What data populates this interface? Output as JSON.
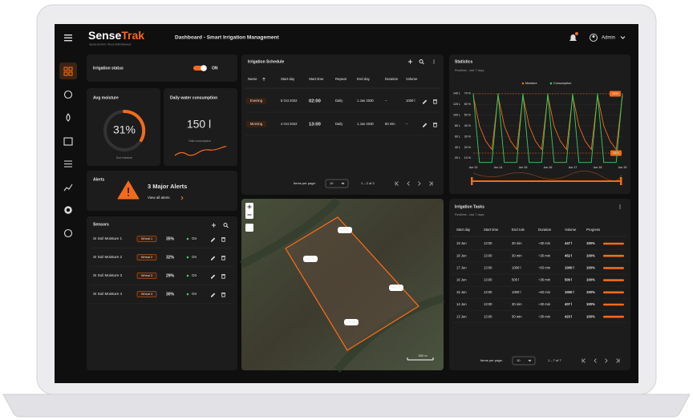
{
  "header": {
    "brand_prefix": "Sense",
    "brand_suffix": "Trak",
    "tagline": "SENSE GROWTH. TRACK PERFORMANCE.",
    "title": "Dashboard - Smart Irrigation Management",
    "user": "Admin"
  },
  "irrigation_status": {
    "label": "Irrigation status",
    "state": "ON"
  },
  "avg_moisture": {
    "title": "Avg moisture",
    "value": "31%",
    "caption": "Soil moisture"
  },
  "daily_water": {
    "title": "Daily water consumption",
    "value": "150 l",
    "caption": "Total consumption"
  },
  "alerts": {
    "title": "Alerts",
    "headline": "3 Major Alerts",
    "link": "View all alerts"
  },
  "sensors": {
    "title": "Sensors",
    "rows": [
      [
        "SI Soil Moisture 1",
        "Wheat 1",
        "35%",
        "On"
      ],
      [
        "SI Soil Moisture 2",
        "Wheat 2",
        "32%",
        "On"
      ],
      [
        "SI Soil Moisture 3",
        "Wheat 3",
        "29%",
        "On"
      ],
      [
        "SI Soil Moisture 4",
        "Wheat 4",
        "30%",
        "On"
      ]
    ]
  },
  "schedule": {
    "title": "Irrigation Schedule",
    "columns": [
      "Name",
      "Start day",
      "Start time",
      "Repeat",
      "End day",
      "Duration",
      "Volume"
    ],
    "rows": [
      [
        "Evening",
        "5 Oct 2022",
        "02:00",
        "Daily",
        "1 Jan 2030",
        "–",
        "1000 l"
      ],
      [
        "Morning",
        "4 Oct 2022",
        "13:00",
        "Daily",
        "1 Jan 2030",
        "60 min",
        "–"
      ]
    ],
    "pager": {
      "label": "Items per page:",
      "size": "10",
      "range": "1 – 2 of 2"
    }
  },
  "map": {
    "labels": [
      "31.7%",
      "28.7%",
      "30.1%",
      "25.3%"
    ],
    "scale": "300 m"
  },
  "chart_data": {
    "type": "line",
    "title": "Statistics",
    "subtitle": "Realtime - last 7 days",
    "categories": [
      "Jun 13",
      null,
      null,
      null,
      "Jun 14",
      null,
      null,
      null,
      "Jun 15",
      null,
      null,
      null,
      "Jun 16",
      null,
      null,
      null,
      "Jun 17",
      null,
      null,
      null,
      "Jun 18",
      null,
      null,
      null,
      "Jun 19"
    ],
    "series": [
      {
        "name": "Moisture",
        "color": "#f26b1d",
        "axis": "y2",
        "values": [
          68,
          40,
          26,
          18,
          68,
          40,
          26,
          18,
          68,
          40,
          26,
          18,
          68,
          40,
          26,
          18,
          68,
          40,
          26,
          18,
          68,
          40,
          26,
          18,
          68
        ]
      },
      {
        "name": "Consumption",
        "color": "#3ccf5a",
        "values": [
          140,
          12,
          12,
          12,
          140,
          12,
          12,
          12,
          140,
          12,
          12,
          12,
          140,
          12,
          12,
          12,
          140,
          12,
          12,
          12,
          140,
          12,
          12,
          12,
          140
        ]
      }
    ],
    "ylim": [
      10,
      150
    ],
    "yticks": [
      {
        "value": 20,
        "label": "20 L"
      },
      {
        "value": 40,
        "label": "40 L"
      },
      {
        "value": 60,
        "label": "60 L"
      },
      {
        "value": 80,
        "label": "80 L"
      },
      {
        "value": 100,
        "label": "100 L"
      },
      {
        "value": 120,
        "label": "120 L"
      },
      {
        "value": 140,
        "label": "140 L"
      }
    ],
    "y2lim": [
      5,
      75
    ],
    "y2ticks": [
      {
        "value": 10,
        "label": "10 %"
      },
      {
        "value": 20,
        "label": "20 %"
      },
      {
        "value": 30,
        "label": "30 %"
      },
      {
        "value": 40,
        "label": "40 %"
      },
      {
        "value": 50,
        "label": "50 %"
      },
      {
        "value": 60,
        "label": "60 %"
      },
      {
        "value": 70,
        "label": "70 %"
      }
    ],
    "annotations": [
      "34%",
      "15%"
    ],
    "grid": true
  },
  "tasks": {
    "title": "Irrigation Tasks",
    "subtitle": "Realtime - last 7 days",
    "columns": [
      "Start day",
      "Start time",
      "End rule",
      "Duration",
      "Volume",
      "Progress"
    ],
    "rows": [
      [
        "19 Jun",
        "13:00",
        "30 min",
        "~30 min",
        "447 l",
        "100%"
      ],
      [
        "18 Jun",
        "13:00",
        "30 min",
        "~30 min",
        "452 l",
        "100%"
      ],
      [
        "17 Jun",
        "13:00",
        "1000 l",
        "~63 min",
        "1000 l",
        "100%"
      ],
      [
        "16 Jun",
        "13:00",
        "500 l",
        "~36 min",
        "500 l",
        "100%"
      ],
      [
        "15 Jun",
        "13:00",
        "1000 l",
        "~63 min",
        "1000 l",
        "100%"
      ],
      [
        "14 Jun",
        "13:00",
        "30 min",
        "~30 min",
        "407 l",
        "100%"
      ],
      [
        "13 Jun",
        "13:00",
        "30 min",
        "~30 min",
        "423 l",
        "100%"
      ]
    ],
    "pager": {
      "label": "Items per page:",
      "size": "10",
      "range": "1 – 7 of 7"
    }
  }
}
